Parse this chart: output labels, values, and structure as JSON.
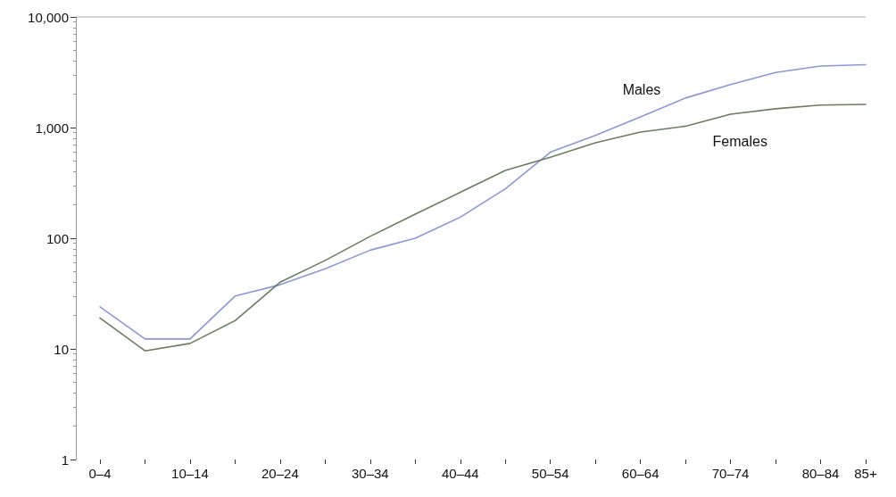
{
  "chart_data": {
    "type": "line",
    "categories": [
      "0–4",
      null,
      "10–14",
      null,
      "20–24",
      null,
      "30–34",
      null,
      "40–44",
      null,
      "50–54",
      null,
      "60–64",
      null,
      "70–74",
      null,
      "80–84",
      "85+"
    ],
    "series": [
      {
        "name": "Males",
        "color": "#8a98d8",
        "values": [
          24,
          12.3,
          12.3,
          30,
          38,
          53,
          78,
          100,
          155,
          280,
          600,
          850,
          1250,
          1850,
          2450,
          3150,
          3600,
          3700
        ]
      },
      {
        "name": "Females",
        "color": "#6b7d5e",
        "values": [
          19,
          9.6,
          11.2,
          18,
          40,
          63,
          104,
          165,
          260,
          410,
          540,
          730,
          910,
          1030,
          1320,
          1480,
          1600,
          1620
        ]
      }
    ],
    "log": true,
    "ylim": [
      1,
      10000
    ],
    "yticks": [
      1,
      10,
      100,
      {
        "value": 1000,
        "label": "1,000"
      },
      {
        "value": 10000,
        "label": "10,000"
      }
    ],
    "grid": false,
    "legend": false,
    "marker": "none",
    "line_style": "solid"
  }
}
